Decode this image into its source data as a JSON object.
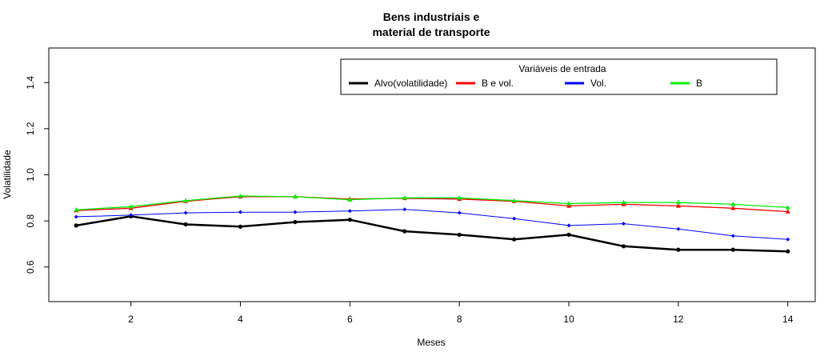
{
  "chart_data": {
    "type": "line",
    "title_line1": "Bens industriais e",
    "title_line2": "material de transporte",
    "xlabel": "Meses",
    "ylabel": "Volatilidade",
    "xlim": [
      0.5,
      14.5
    ],
    "ylim": [
      0.45,
      1.55
    ],
    "x_ticks": [
      2,
      4,
      6,
      8,
      10,
      12,
      14
    ],
    "y_ticks": [
      0.6,
      0.8,
      1.0,
      1.2,
      1.4
    ],
    "y_tick_labels": [
      "0.6",
      "0.8",
      "1.0",
      "1.2",
      "1.4"
    ],
    "grid": false,
    "legend": {
      "title": "Variáveis de entrada",
      "placement": "top-right"
    },
    "x": [
      1,
      2,
      3,
      4,
      5,
      6,
      7,
      8,
      9,
      10,
      11,
      12,
      13,
      14
    ],
    "series": [
      {
        "name": "Alvo(volatilidade)",
        "color": "#000000",
        "marker": "circle",
        "values": [
          0.78,
          0.82,
          0.785,
          0.775,
          0.795,
          0.805,
          0.755,
          0.74,
          0.72,
          0.74,
          0.69,
          0.675,
          0.675,
          0.668
        ]
      },
      {
        "name": "B e vol.",
        "color": "#ff0000",
        "marker": "triangle",
        "values": [
          0.845,
          0.855,
          0.885,
          0.905,
          0.905,
          0.895,
          0.898,
          0.895,
          0.885,
          0.865,
          0.872,
          0.865,
          0.855,
          0.84
        ]
      },
      {
        "name": "Vol.",
        "color": "#0000ff",
        "marker": "diamond",
        "values": [
          0.818,
          0.825,
          0.835,
          0.838,
          0.838,
          0.843,
          0.85,
          0.835,
          0.81,
          0.78,
          0.788,
          0.765,
          0.735,
          0.72
        ]
      },
      {
        "name": "B",
        "color": "#00ee00",
        "marker": "triangle",
        "values": [
          0.848,
          0.862,
          0.888,
          0.908,
          0.905,
          0.892,
          0.9,
          0.9,
          0.888,
          0.875,
          0.88,
          0.88,
          0.872,
          0.858
        ]
      }
    ]
  }
}
